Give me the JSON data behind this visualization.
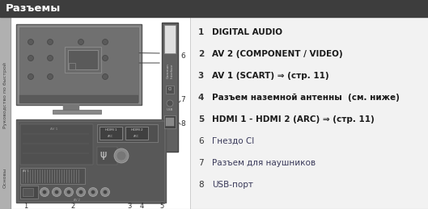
{
  "title": "Разъемы",
  "title_bg": "#3d3d3d",
  "title_color": "#ffffff",
  "bg_color": "#f2f2f2",
  "sidebar_left_color": "#b0b0b0",
  "sidebar_text1": "Руководство по быстрой",
  "sidebar_text2": "Основы",
  "items": [
    {
      "num": "1",
      "text": "DIGITAL AUDIO"
    },
    {
      "num": "2",
      "text": "AV 2 (COMPONENT / VIDEO)"
    },
    {
      "num": "3",
      "text": "AV 1 (SCART) ⇒ (стр. 11)"
    },
    {
      "num": "4",
      "text": "Разъем наземной антенны  (см. ниже)"
    },
    {
      "num": "5",
      "text": "HDMI 1 - HDMI 2 (ARC) ⇒ (стр. 11)"
    },
    {
      "num": "6",
      "text": "Гнездо CI"
    },
    {
      "num": "7",
      "text": "Разъем для наушников"
    },
    {
      "num": "8",
      "text": "USB-порт"
    }
  ],
  "items15_color": "#2a2a2a",
  "items68_color": "#555577",
  "figsize": [
    5.29,
    2.59
  ],
  "dpi": 100
}
